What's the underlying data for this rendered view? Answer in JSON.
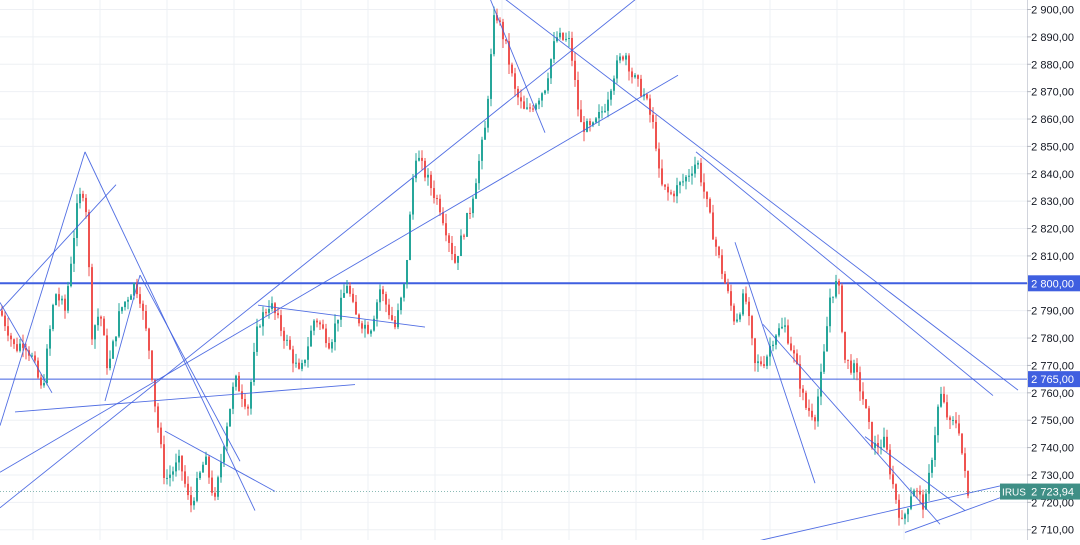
{
  "colors": {
    "background": "#ffffff",
    "grid": "#eef0f4",
    "up": "#26a69a",
    "down": "#ef5350",
    "trendline": "#3f5fe0",
    "hline": "#3f5fe0",
    "axis_text": "#131722",
    "price_badge": "#3f8f86"
  },
  "chart_data": {
    "type": "candlestick",
    "symbol": "IRUS",
    "last_price": 2723.94,
    "last_price_label": "2 723,94",
    "ylim": [
      2706,
      2904
    ],
    "y_ticks": [
      2710,
      2720,
      2730,
      2740,
      2750,
      2760,
      2770,
      2780,
      2790,
      2800,
      2810,
      2820,
      2830,
      2840,
      2850,
      2860,
      2870,
      2880,
      2890,
      2900
    ],
    "y_tick_labels": [
      "2 710,00",
      "2 720,00",
      "2 730,00",
      "2 740,00",
      "2 750,00",
      "2 760,00",
      "2 770,00",
      "2 780,00",
      "2 790,00",
      "2 800,00",
      "2 810,00",
      "2 820,00",
      "2 830,00",
      "2 840,00",
      "2 850,00",
      "2 860,00",
      "2 870,00",
      "2 880,00",
      "2 890,00",
      "2 900,00"
    ],
    "horizontal_levels": [
      {
        "value": 2800,
        "label": "2 800,00",
        "weight": "bold"
      },
      {
        "value": 2765,
        "label": "2 765,00",
        "weight": "normal"
      }
    ],
    "close_path": [
      [
        0,
        2790
      ],
      [
        8,
        2783
      ],
      [
        15,
        2776
      ],
      [
        24,
        2779
      ],
      [
        33,
        2772
      ],
      [
        42,
        2760
      ],
      [
        55,
        2797
      ],
      [
        65,
        2790
      ],
      [
        78,
        2830
      ],
      [
        85,
        2835
      ],
      [
        92,
        2782
      ],
      [
        100,
        2790
      ],
      [
        108,
        2768
      ],
      [
        120,
        2790
      ],
      [
        135,
        2800
      ],
      [
        140,
        2795
      ],
      [
        150,
        2774
      ],
      [
        155,
        2756
      ],
      [
        165,
        2728
      ],
      [
        180,
        2735
      ],
      [
        190,
        2718
      ],
      [
        205,
        2736
      ],
      [
        215,
        2720
      ],
      [
        225,
        2745
      ],
      [
        235,
        2765
      ],
      [
        248,
        2755
      ],
      [
        258,
        2785
      ],
      [
        270,
        2793
      ],
      [
        285,
        2780
      ],
      [
        300,
        2766
      ],
      [
        315,
        2788
      ],
      [
        330,
        2778
      ],
      [
        347,
        2800
      ],
      [
        355,
        2788
      ],
      [
        370,
        2783
      ],
      [
        380,
        2798
      ],
      [
        395,
        2784
      ],
      [
        405,
        2800
      ],
      [
        415,
        2848
      ],
      [
        425,
        2840
      ],
      [
        440,
        2828
      ],
      [
        455,
        2808
      ],
      [
        470,
        2827
      ],
      [
        485,
        2856
      ],
      [
        495,
        2900
      ],
      [
        505,
        2888
      ],
      [
        515,
        2870
      ],
      [
        525,
        2862
      ],
      [
        535,
        2866
      ],
      [
        545,
        2872
      ],
      [
        556,
        2890
      ],
      [
        570,
        2888
      ],
      [
        580,
        2858
      ],
      [
        592,
        2856
      ],
      [
        605,
        2865
      ],
      [
        615,
        2878
      ],
      [
        625,
        2885
      ],
      [
        632,
        2876
      ],
      [
        645,
        2868
      ],
      [
        655,
        2855
      ],
      [
        660,
        2836
      ],
      [
        670,
        2832
      ],
      [
        685,
        2838
      ],
      [
        697,
        2845
      ],
      [
        705,
        2832
      ],
      [
        715,
        2815
      ],
      [
        725,
        2800
      ],
      [
        735,
        2786
      ],
      [
        745,
        2796
      ],
      [
        755,
        2770
      ],
      [
        765,
        2772
      ],
      [
        775,
        2782
      ],
      [
        785,
        2784
      ],
      [
        795,
        2772
      ],
      [
        805,
        2755
      ],
      [
        815,
        2752
      ],
      [
        823,
        2770
      ],
      [
        830,
        2795
      ],
      [
        838,
        2801
      ],
      [
        845,
        2772
      ],
      [
        855,
        2768
      ],
      [
        863,
        2758
      ],
      [
        873,
        2740
      ],
      [
        885,
        2742
      ],
      [
        892,
        2728
      ],
      [
        902,
        2712
      ],
      [
        913,
        2726
      ],
      [
        925,
        2718
      ],
      [
        933,
        2740
      ],
      [
        940,
        2760
      ],
      [
        950,
        2748
      ],
      [
        958,
        2750
      ],
      [
        963,
        2735
      ],
      [
        968,
        2722
      ]
    ],
    "trend_lines": [
      [
        [
          0,
          2718
        ],
        [
          640,
          2905
        ]
      ],
      [
        [
          0,
          2731
        ],
        [
          678,
          2876
        ]
      ],
      [
        [
          0,
          2790
        ],
        [
          116,
          2836
        ]
      ],
      [
        [
          0,
          2793
        ],
        [
          52,
          2760
        ]
      ],
      [
        [
          0,
          2748
        ],
        [
          85,
          2848
        ]
      ],
      [
        [
          85,
          2848
        ],
        [
          255,
          2717
        ]
      ],
      [
        [
          105,
          2757
        ],
        [
          140,
          2803
        ]
      ],
      [
        [
          140,
          2803
        ],
        [
          240,
          2735
        ]
      ],
      [
        [
          15,
          2753
        ],
        [
          355,
          2763
        ]
      ],
      [
        [
          165,
          2746
        ],
        [
          275,
          2724
        ]
      ],
      [
        [
          258,
          2792
        ],
        [
          425,
          2784
        ]
      ],
      [
        [
          490,
          2904
        ],
        [
          545,
          2855
        ]
      ],
      [
        [
          490,
          2908
        ],
        [
          1018,
          2761
        ]
      ],
      [
        [
          696,
          2848
        ],
        [
          993,
          2759
        ]
      ],
      [
        [
          735,
          2815
        ],
        [
          815,
          2727
        ]
      ],
      [
        [
          763,
          2785
        ],
        [
          940,
          2712
        ]
      ],
      [
        [
          735,
          2704
        ],
        [
          1000,
          2726
        ]
      ],
      [
        [
          865,
          2744
        ],
        [
          965,
          2717
        ]
      ],
      [
        [
          905,
          2709
        ],
        [
          1010,
          2723
        ]
      ]
    ]
  }
}
